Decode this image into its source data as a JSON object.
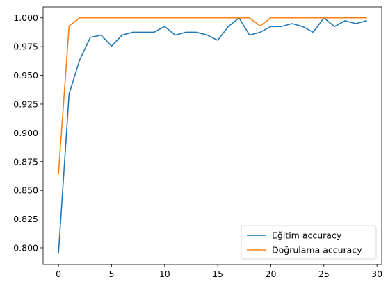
{
  "chart_data": {
    "type": "line",
    "title": "",
    "xlabel": "",
    "ylabel": "",
    "xlim": [
      -1.45,
      30.45
    ],
    "ylim": [
      0.7855,
      1.0095
    ],
    "x_ticks": [
      0,
      5,
      10,
      15,
      20,
      25,
      30
    ],
    "y_ticks": [
      0.8,
      0.825,
      0.85,
      0.875,
      0.9,
      0.925,
      0.95,
      0.975,
      1.0
    ],
    "x_tick_labels": [
      "0",
      "5",
      "10",
      "15",
      "20",
      "25",
      "30"
    ],
    "y_tick_labels": [
      "0.800",
      "0.825",
      "0.850",
      "0.875",
      "0.900",
      "0.925",
      "0.950",
      "0.975",
      "1.000"
    ],
    "grid": false,
    "legend_position": "lower-right",
    "x": [
      0,
      1,
      2,
      3,
      4,
      5,
      6,
      7,
      8,
      9,
      10,
      11,
      12,
      13,
      14,
      15,
      16,
      17,
      18,
      19,
      20,
      21,
      22,
      23,
      24,
      25,
      26,
      27,
      28,
      29
    ],
    "series": [
      {
        "name": "Eğitim accuracy",
        "color": "#1f77b4",
        "values": [
          0.7955,
          0.934,
          0.9635,
          0.983,
          0.985,
          0.9755,
          0.985,
          0.9875,
          0.9875,
          0.9875,
          0.9925,
          0.985,
          0.9875,
          0.9875,
          0.985,
          0.9805,
          0.9925,
          1.0,
          0.985,
          0.9875,
          0.9925,
          0.9925,
          0.995,
          0.9925,
          0.9875,
          1.0,
          0.9925,
          0.9975,
          0.995,
          0.9975
        ]
      },
      {
        "name": "Doğrulama accuracy",
        "color": "#ff7f0e",
        "values": [
          0.865,
          0.993,
          1.0,
          1.0,
          1.0,
          1.0,
          1.0,
          1.0,
          1.0,
          1.0,
          1.0,
          1.0,
          1.0,
          1.0,
          1.0,
          1.0,
          1.0,
          1.0,
          1.0,
          0.993,
          1.0,
          1.0,
          1.0,
          1.0,
          1.0,
          1.0,
          1.0,
          1.0,
          1.0,
          1.0
        ]
      }
    ]
  }
}
